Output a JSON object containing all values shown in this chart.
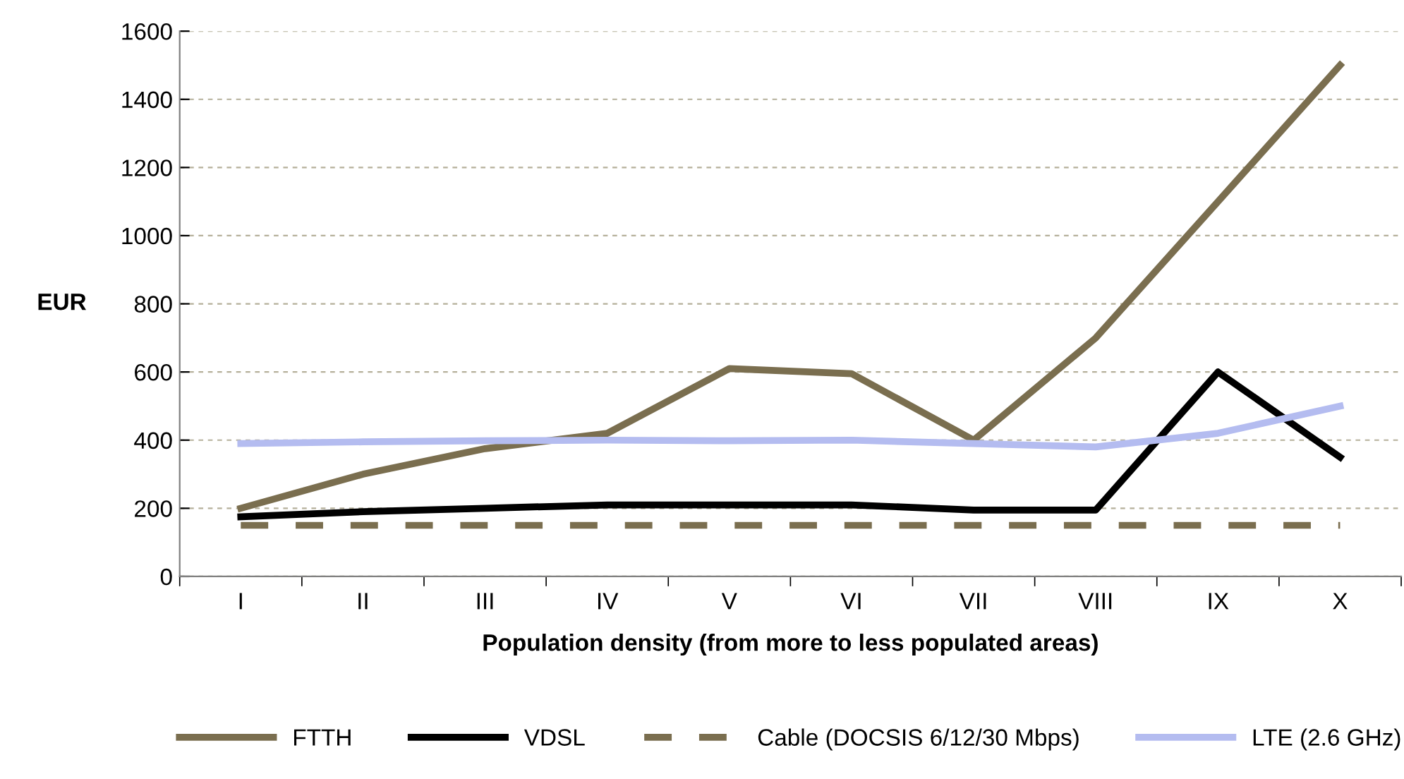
{
  "chart_data": {
    "type": "line",
    "xlabel": "Population density (from more to less populated areas)",
    "ylabel": "EUR",
    "categories": [
      "I",
      "II",
      "III",
      "IV",
      "V",
      "VI",
      "VII",
      "VIII",
      "IX",
      "X"
    ],
    "series": [
      {
        "name": "FTTH",
        "color": "#7a6e4f",
        "line_style": "solid",
        "values": [
          200,
          300,
          375,
          420,
          610,
          595,
          400,
          700,
          1100,
          1500
        ]
      },
      {
        "name": "VDSL",
        "color": "#000000",
        "line_style": "solid",
        "values": [
          175,
          190,
          200,
          210,
          210,
          210,
          195,
          195,
          600,
          350
        ]
      },
      {
        "name": "Cable (DOCSIS 6/12/30 Mbps)",
        "color": "#7a6e4f",
        "line_style": "dashed",
        "values": [
          150,
          150,
          150,
          150,
          150,
          150,
          150,
          150,
          150,
          150
        ]
      },
      {
        "name": "LTE (2.6 GHz)",
        "color": "#b4bcf0",
        "line_style": "solid",
        "values": [
          390,
          395,
          398,
          400,
          398,
          400,
          390,
          380,
          420,
          500
        ]
      }
    ],
    "ylim": [
      0,
      1600
    ],
    "yticks": [
      0,
      200,
      400,
      600,
      800,
      1000,
      1200,
      1400,
      1600
    ],
    "grid": "y",
    "legend": "bottom",
    "marker": "none"
  }
}
